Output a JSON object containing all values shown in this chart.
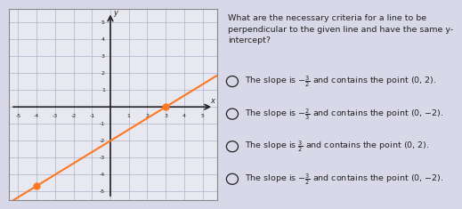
{
  "graph": {
    "xlim": [
      -5.5,
      5.8
    ],
    "ylim": [
      -5.5,
      5.8
    ],
    "xticks": [
      -5,
      -4,
      -3,
      -2,
      -1,
      1,
      2,
      3,
      4,
      5
    ],
    "yticks": [
      -5,
      -4,
      -3,
      -2,
      -1,
      1,
      2,
      3,
      4,
      5
    ],
    "line_slope": 0.6667,
    "line_intercept": -2,
    "line_color": "#FF7722",
    "dot_color": "#FF7722",
    "bg_color": "#e8e8f0",
    "grid_color": "#b0b0cc",
    "axis_color": "#222222",
    "border_color": "#888888"
  },
  "question": {
    "title_line1": "What are the necessary criteria for a line to be",
    "title_line2": "perpendicular to the given line and have the same y-",
    "title_line3": "intercept?",
    "option_texts": [
      [
        "The slope is ",
        "-\\frac{3}{2}",
        " and contains the point (0, 2)."
      ],
      [
        "The slope is ",
        "-\\frac{2}{3}",
        " and contains the point (0, −2)."
      ],
      [
        "The slope is ",
        "\\frac{3}{2}",
        " and contains the point (0, 2)."
      ],
      [
        "The slope is ",
        "-\\frac{3}{2}",
        " and contains the point (0, −2)."
      ]
    ],
    "text_color": "#222222",
    "title_fontsize": 6.8,
    "option_fontsize": 6.8,
    "bg_color": "#e8e8f0"
  },
  "overall_bg": "#d8d8e8"
}
